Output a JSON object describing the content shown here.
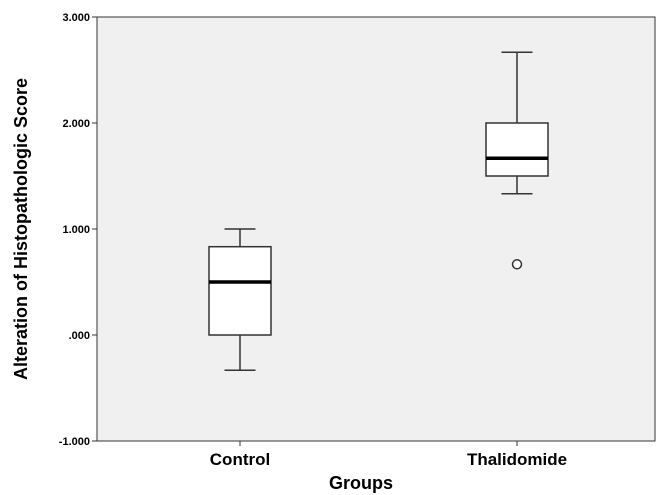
{
  "chart_data": {
    "type": "boxplot",
    "xlabel": "Groups",
    "ylabel": "Alteration of Histopathologic Score",
    "ylim": [
      -1,
      3
    ],
    "yticks": [
      {
        "value": 3,
        "label": "3.000"
      },
      {
        "value": 2,
        "label": "2.000"
      },
      {
        "value": 1,
        "label": "1.000"
      },
      {
        "value": 0,
        "label": ".000"
      },
      {
        "value": -1,
        "label": "-1.000"
      }
    ],
    "categories": [
      "Control",
      "Thalidomide"
    ],
    "boxes": [
      {
        "category": "Control",
        "whisker_low": -0.333,
        "q1": 0.0,
        "median": 0.5,
        "q3": 0.833,
        "whisker_high": 1.0,
        "outliers": []
      },
      {
        "category": "Thalidomide",
        "whisker_low": 1.333,
        "q1": 1.5,
        "median": 1.667,
        "q3": 2.0,
        "whisker_high": 2.667,
        "outliers": [
          0.667
        ]
      }
    ],
    "grid": false,
    "plot_background": "#f0f0f0",
    "box_fill": "#ffffff",
    "line_color": "#333333"
  }
}
